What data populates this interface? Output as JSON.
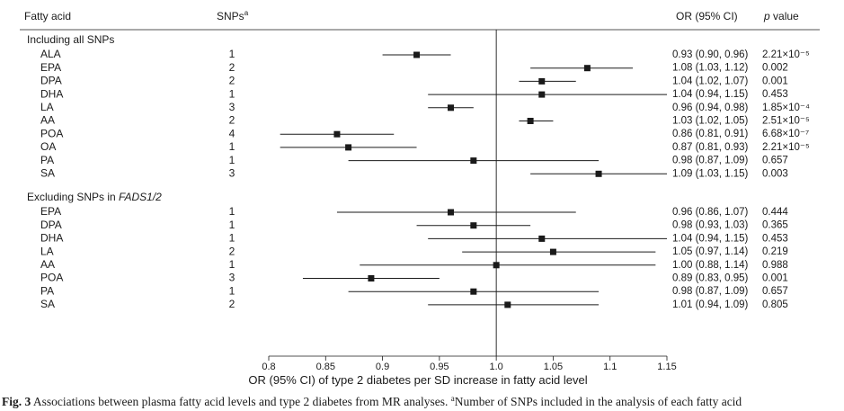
{
  "chart_data": {
    "type": "forest",
    "headers": {
      "name": "Fatty acid",
      "snps": "SNPs",
      "snps_note_mark": "a",
      "ci": "OR (95% CI)",
      "p_italic": "p",
      "p_rest": " value"
    },
    "groups": [
      {
        "label": "Including all SNPs",
        "rows": [
          {
            "name": "ALA",
            "snps": 1,
            "value": 0.93,
            "lower": 0.9,
            "upper": 0.96,
            "value_label": "0.93 (0.90, 0.96)",
            "p_label": "2.21×10⁻⁵"
          },
          {
            "name": "EPA",
            "snps": 2,
            "value": 1.08,
            "lower": 1.03,
            "upper": 1.12,
            "value_label": "1.08 (1.03, 1.12)",
            "p_label": "0.002"
          },
          {
            "name": "DPA",
            "snps": 2,
            "value": 1.04,
            "lower": 1.02,
            "upper": 1.07,
            "value_label": "1.04 (1.02, 1.07)",
            "p_label": "0.001"
          },
          {
            "name": "DHA",
            "snps": 1,
            "value": 1.04,
            "lower": 0.94,
            "upper": 1.15,
            "value_label": "1.04 (0.94, 1.15)",
            "p_label": "0.453"
          },
          {
            "name": "LA",
            "snps": 3,
            "value": 0.96,
            "lower": 0.94,
            "upper": 0.98,
            "value_label": "0.96 (0.94, 0.98)",
            "p_label": "1.85×10⁻⁴"
          },
          {
            "name": "AA",
            "snps": 2,
            "value": 1.03,
            "lower": 1.02,
            "upper": 1.05,
            "value_label": "1.03 (1.02, 1.05)",
            "p_label": "2.51×10⁻⁵"
          },
          {
            "name": "POA",
            "snps": 4,
            "value": 0.86,
            "lower": 0.81,
            "upper": 0.91,
            "value_label": "0.86 (0.81, 0.91)",
            "p_label": "6.68×10⁻⁷"
          },
          {
            "name": "OA",
            "snps": 1,
            "value": 0.87,
            "lower": 0.81,
            "upper": 0.93,
            "value_label": "0.87 (0.81, 0.93)",
            "p_label": "2.21×10⁻⁵"
          },
          {
            "name": "PA",
            "snps": 1,
            "value": 0.98,
            "lower": 0.87,
            "upper": 1.09,
            "value_label": "0.98 (0.87, 1.09)",
            "p_label": "0.657"
          },
          {
            "name": "SA",
            "snps": 3,
            "value": 1.09,
            "lower": 1.03,
            "upper": 1.15,
            "value_label": "1.09 (1.03, 1.15)",
            "p_label": "0.003"
          }
        ]
      },
      {
        "label": "Excluding SNPs in ",
        "label_italic": "FADS1/2",
        "rows": [
          {
            "name": "EPA",
            "snps": 1,
            "value": 0.96,
            "lower": 0.86,
            "upper": 1.07,
            "value_label": "0.96 (0.86, 1.07)",
            "p_label": "0.444"
          },
          {
            "name": "DPA",
            "snps": 1,
            "value": 0.98,
            "lower": 0.93,
            "upper": 1.03,
            "value_label": "0.98 (0.93, 1.03)",
            "p_label": "0.365"
          },
          {
            "name": "DHA",
            "snps": 1,
            "value": 1.04,
            "lower": 0.94,
            "upper": 1.15,
            "value_label": "1.04 (0.94, 1.15)",
            "p_label": "0.453"
          },
          {
            "name": "LA",
            "snps": 2,
            "value": 1.05,
            "lower": 0.97,
            "upper": 1.14,
            "value_label": "1.05 (0.97, 1.14)",
            "p_label": "0.219"
          },
          {
            "name": "AA",
            "snps": 1,
            "value": 1.0,
            "lower": 0.88,
            "upper": 1.14,
            "value_label": "1.00 (0.88, 1.14)",
            "p_label": "0.988"
          },
          {
            "name": "POA",
            "snps": 3,
            "value": 0.89,
            "lower": 0.83,
            "upper": 0.95,
            "value_label": "0.89 (0.83, 0.95)",
            "p_label": "0.001"
          },
          {
            "name": "PA",
            "snps": 1,
            "value": 0.98,
            "lower": 0.87,
            "upper": 1.09,
            "value_label": "0.98 (0.87, 1.09)",
            "p_label": "0.657"
          },
          {
            "name": "SA",
            "snps": 2,
            "value": 1.01,
            "lower": 0.94,
            "upper": 1.09,
            "value_label": "1.01 (0.94, 1.09)",
            "p_label": "0.805"
          }
        ]
      }
    ],
    "reference": 1,
    "xlim": [
      0.8,
      1.15
    ],
    "xticks": [
      0.8,
      0.85,
      0.9,
      0.95,
      {
        "value": 1,
        "label": "1.0"
      },
      1.05,
      1.1,
      1.15
    ],
    "x_label": "OR (95% CI) of type 2 diabetes per SD increase in fatty acid level",
    "color": "#1a1a1a",
    "caption": {
      "label": "Fig. 3",
      "text": " Associations between plasma fatty acid levels and type 2 diabetes from MR analyses. ",
      "note_mark": "a",
      "note": "Number of SNPs included in the analysis of each fatty acid"
    }
  }
}
